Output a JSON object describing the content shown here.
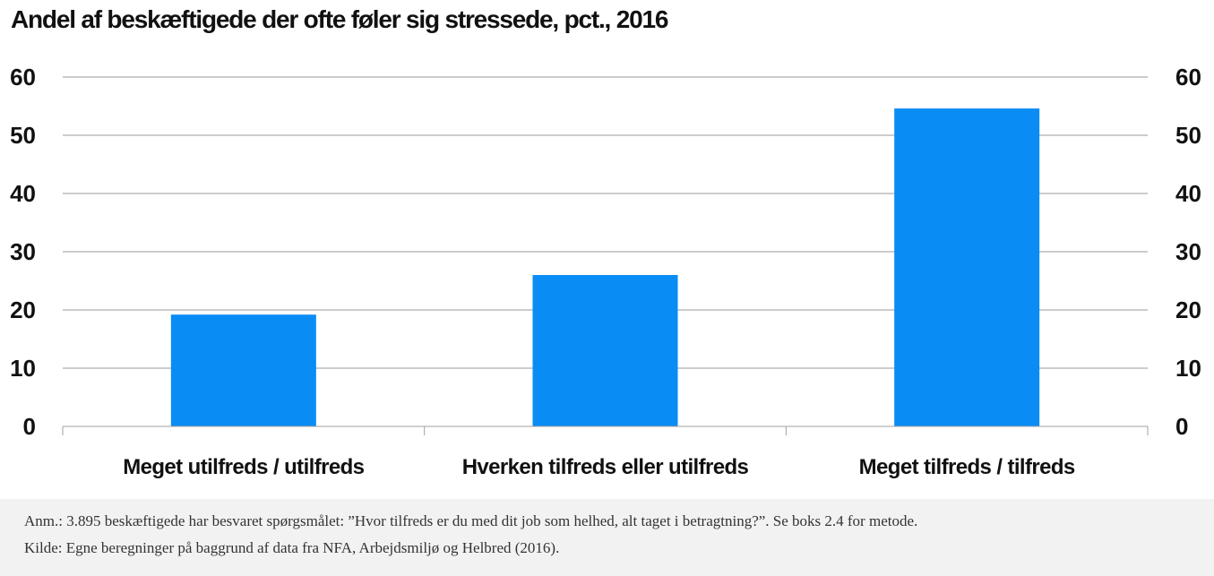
{
  "chart_data": {
    "type": "bar",
    "title": "Andel af beskæftigede der ofte føler sig stressede, pct., 2016",
    "categories": [
      "Meget utilfreds / utilfreds",
      "Hverken tilfreds eller utilfreds",
      "Meget tilfreds / tilfreds"
    ],
    "values": [
      19.2,
      26.0,
      54.6
    ],
    "xlabel": "",
    "ylabel": "",
    "ylim": [
      0,
      60
    ],
    "yticks": [
      0,
      10,
      20,
      30,
      40,
      50,
      60
    ],
    "secondary_axis": true,
    "grid": true,
    "legend": "none",
    "bar_color": "#0a8cf5",
    "grid_color": "#9a9a9a"
  },
  "notes": {
    "anm": "Anm.: 3.895 beskæftigede har besvaret spørgsmålet: ”Hvor tilfreds er du med dit job som helhed, alt taget i betragtning?”. Se boks 2.4 for metode.",
    "kilde": "Kilde: Egne beregninger på baggrund af data fra NFA, Arbejdsmiljø og Helbred (2016)."
  }
}
